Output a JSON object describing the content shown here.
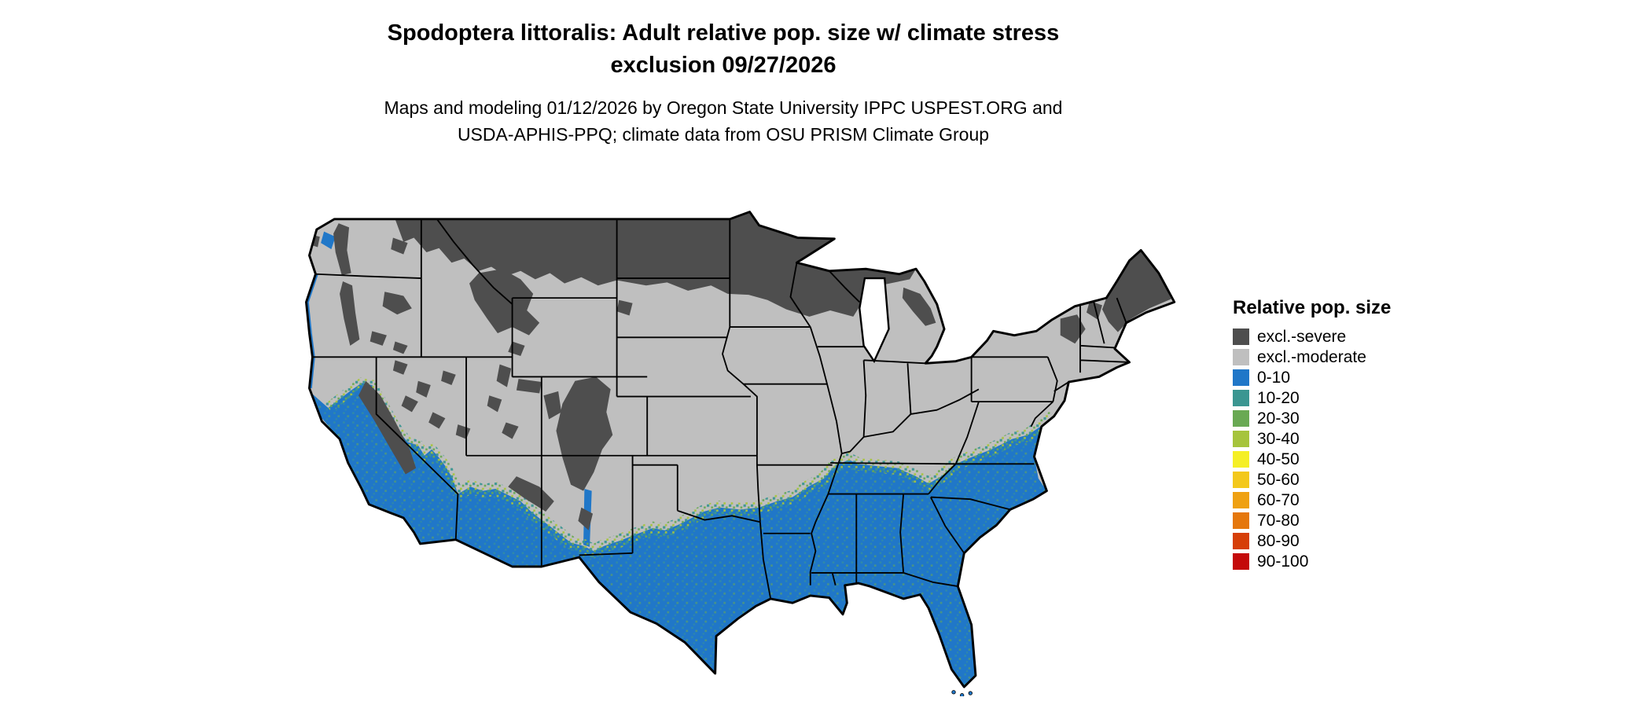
{
  "title": {
    "line1": "Spodoptera littoralis: Adult relative pop. size w/ climate stress",
    "line2": "exclusion 09/27/2026"
  },
  "subtitle": {
    "line1": "Maps and modeling 01/12/2026 by Oregon State University IPPC USPEST.ORG and",
    "line2": "USDA-APHIS-PPQ; climate data from OSU PRISM Climate Group"
  },
  "map": {
    "region": "Conterminous United States",
    "style": "raster choropleth with state borders",
    "border_color": "#000000",
    "water_color": "#ffffff",
    "description": "Dark gray severe-exclusion across the northern tier (eastern Montana, North Dakota, northern Minnesota, northern Wisconsin, upper Michigan, Maine) and western mountain ranges; light gray moderate-exclusion over the plains, midwest and northeast; blue 0-10 relative population with green 10-30 mottling across California lowlands, the southern Southwest, Texas, the Gulf states, the Southeast and the southern Atlantic coastal plain."
  },
  "legend": {
    "title": "Relative pop. size",
    "entries": [
      {
        "label": "excl.-severe",
        "color": "#4e4e4e"
      },
      {
        "label": "excl.-moderate",
        "color": "#bfbfbf"
      },
      {
        "label": "0-10",
        "color": "#2077c8"
      },
      {
        "label": "10-20",
        "color": "#3b9691"
      },
      {
        "label": "20-30",
        "color": "#69a953"
      },
      {
        "label": "30-40",
        "color": "#a6c43c"
      },
      {
        "label": "40-50",
        "color": "#f5ef26"
      },
      {
        "label": "50-60",
        "color": "#f3c81c"
      },
      {
        "label": "60-70",
        "color": "#efa112"
      },
      {
        "label": "70-80",
        "color": "#e5770c"
      },
      {
        "label": "80-90",
        "color": "#d63f08"
      },
      {
        "label": "90-100",
        "color": "#c40a0a"
      }
    ]
  }
}
